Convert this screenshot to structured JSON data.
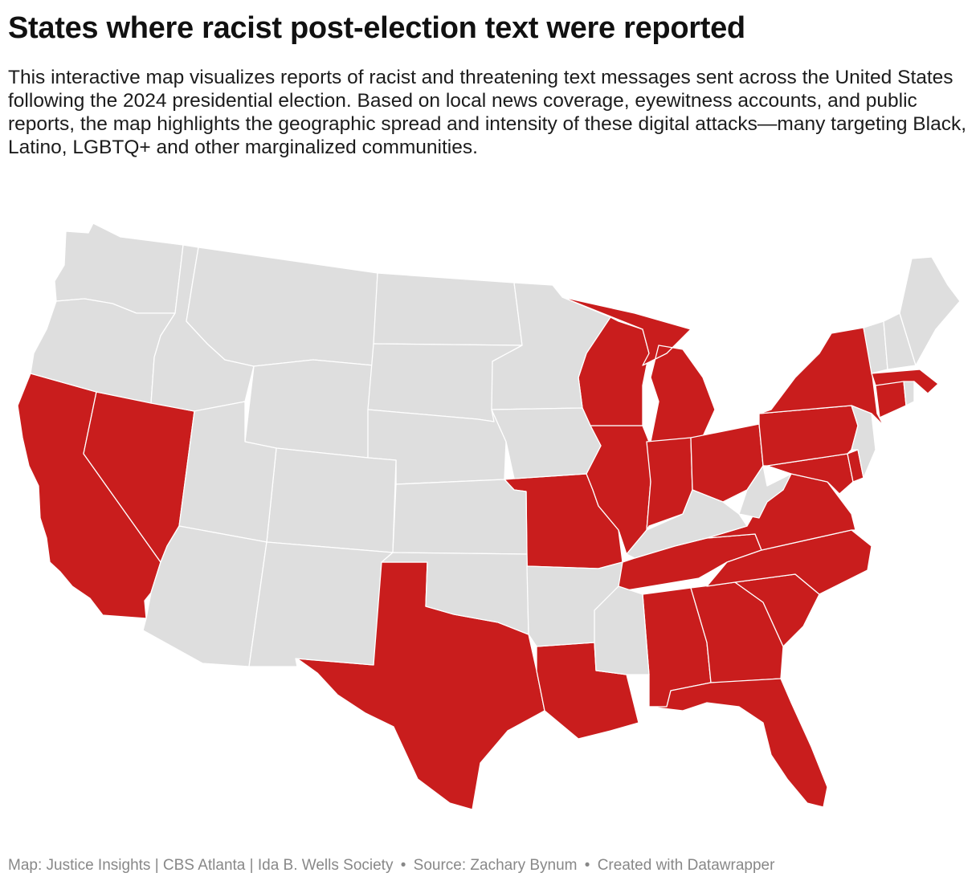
{
  "title": "States where racist post-election text were reported",
  "description": "This interactive map visualizes reports of racist and threatening text messages sent across the United States following the 2024 presidential election. Based on local news coverage, eyewitness accounts, and public reports, the map highlights the geographic spread and intensity of these digital attacks—many targeting Black, Latino, LGBTQ+ and other marginalized communities.",
  "colors": {
    "reported": "#c91d1d",
    "not_reported": "#dedede"
  },
  "reported_states": [
    "CA",
    "NV",
    "TX",
    "LA",
    "MO",
    "IL",
    "WI",
    "MI",
    "IN",
    "OH",
    "TN",
    "AL",
    "GA",
    "SC",
    "NC",
    "VA",
    "MD",
    "DE",
    "PA",
    "NY",
    "MA",
    "CT",
    "FL"
  ],
  "not_reported_states": [
    "WA",
    "OR",
    "ID",
    "MT",
    "WY",
    "ND",
    "SD",
    "NE",
    "MN",
    "IA",
    "CO",
    "UT",
    "AZ",
    "NM",
    "KS",
    "OK",
    "AR",
    "MS",
    "KY",
    "WV",
    "NJ",
    "VT",
    "NH",
    "ME",
    "RI"
  ],
  "footer": {
    "map_credit": "Map: Justice Insights | CBS Atlanta | Ida B. Wells Society",
    "bullet_1": "•",
    "source": "Source: Zachary Bynum",
    "bullet_2": "•",
    "tool": "Created with Datawrapper"
  }
}
